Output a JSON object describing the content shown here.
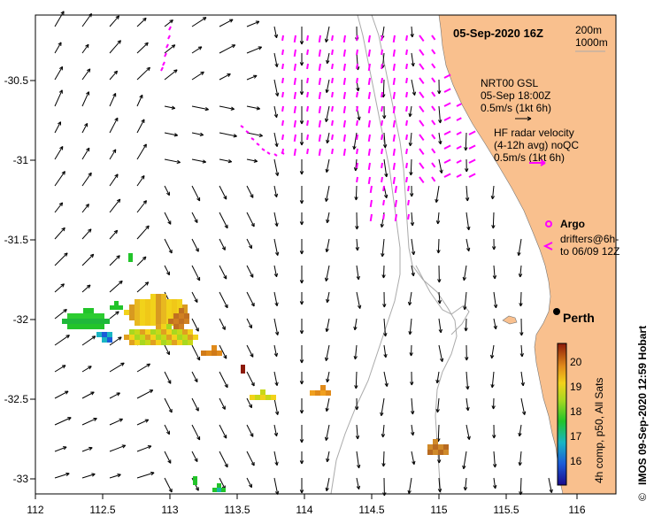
{
  "map": {
    "title": "05-Sep-2020 16Z",
    "lon_ticks": [
      "112",
      "112.5",
      "113",
      "113.5",
      "114",
      "114.5",
      "115",
      "115.5",
      "116"
    ],
    "lat_ticks": [
      "-30.5",
      "-31",
      "-31.5",
      "-32",
      "-32.5",
      "-33"
    ],
    "isobath_labels": [
      "200m",
      "1000m"
    ],
    "legend": {
      "model_line1": "NRT00 GSL",
      "model_line2": "05-Sep 18:00Z",
      "model_line3": "0.5m/s (1kt 6h)",
      "hf_line1": "HF radar velocity",
      "hf_line2": "(4-12h avg) noQC",
      "hf_line3": "0.5m/s (1kt 6h)",
      "argo_label": "Argo",
      "drifters_line1": "drifters@6h-",
      "drifters_line2": "to 06/09 12Z"
    },
    "city": "Perth",
    "credit": "IMOS 09-Sep-2020 12:59 Hobart",
    "copyright": "©",
    "colorbar": {
      "label": "4h comp, p50, All Sats",
      "ticks": [
        "20",
        "19",
        "18",
        "17",
        "16"
      ]
    },
    "colors": {
      "land": "#f9c08e",
      "hf_vectors": "#ff00ff",
      "model_vectors": "#000000",
      "isobath": "#aaaaaa"
    }
  }
}
